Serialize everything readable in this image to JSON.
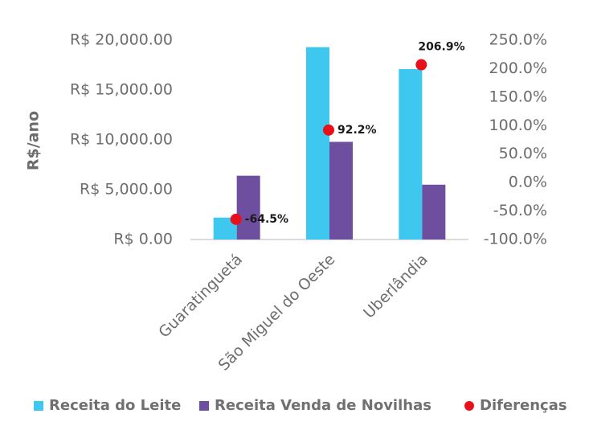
{
  "chart_data": {
    "type": "bar",
    "y_label": "R$/ano",
    "categories": [
      "Guaratinguetá",
      "São Miguel do Oeste",
      "Uberlândia"
    ],
    "series": [
      {
        "name": "Receita do Leite",
        "color": "#3ec8f0",
        "values": [
          2200,
          19300,
          17100
        ]
      },
      {
        "name": "Receita Venda de Novilhas",
        "color": "#6e4f9f",
        "values": [
          6400,
          9800,
          5500
        ]
      },
      {
        "name": "Diferenças",
        "type": "scatter",
        "axis": "y2",
        "color": "#e8101a",
        "values": [
          -64.5,
          92.2,
          206.9
        ],
        "value_labels": [
          "-64.5%",
          "92.2%",
          "206.9%"
        ]
      }
    ],
    "ylim": [
      0,
      20000
    ],
    "yticks": [
      {
        "value": 0,
        "label": "R$ 0.00"
      },
      {
        "value": 5000,
        "label": "R$ 5,000.00"
      },
      {
        "value": 10000,
        "label": "R$ 10,000.00"
      },
      {
        "value": 15000,
        "label": "R$ 15,000.00"
      },
      {
        "value": 20000,
        "label": "R$ 20,000.00"
      }
    ],
    "y2lim": [
      -100,
      250
    ],
    "y2ticks": [
      {
        "value": -100,
        "label": "-100.0%"
      },
      {
        "value": -50,
        "label": "-50.0%"
      },
      {
        "value": 0,
        "label": "0.0%"
      },
      {
        "value": 50,
        "label": "50.0%"
      },
      {
        "value": 100,
        "label": "100.0%"
      },
      {
        "value": 150,
        "label": "150.0%"
      },
      {
        "value": 200,
        "label": "200.0%"
      },
      {
        "value": 250,
        "label": "250.0%"
      }
    ],
    "grid": false,
    "legend": "bottom"
  }
}
